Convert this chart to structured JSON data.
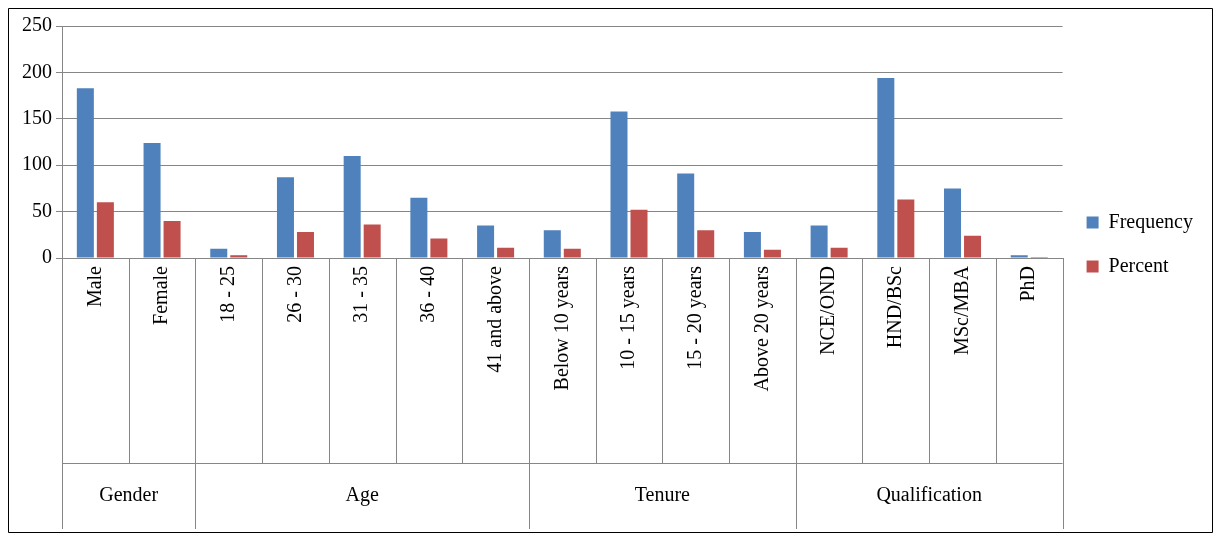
{
  "chart_data": {
    "type": "bar",
    "categories": [
      "Male",
      "Female",
      "18 - 25",
      "26 - 30",
      "31 - 35",
      "36 - 40",
      "41 and above",
      "Below 10 years",
      "10 - 15 years",
      "15 - 20 years",
      "Above 20 years",
      "NCE/OND",
      "HND/BSc",
      "MSc/MBA",
      "PhD"
    ],
    "series": [
      {
        "name": "Frequency",
        "color": "#4f81bd",
        "values": [
          183,
          124,
          10,
          87,
          110,
          65,
          35,
          30,
          158,
          91,
          28,
          35,
          194,
          75,
          3
        ]
      },
      {
        "name": "Percent",
        "color": "#c0504d",
        "values": [
          60,
          40,
          3,
          28,
          36,
          21,
          11,
          10,
          52,
          30,
          9,
          11,
          63,
          24,
          1
        ]
      }
    ],
    "ylim": [
      0,
      250
    ],
    "yticks": [
      0,
      50,
      100,
      150,
      200,
      250
    ],
    "grid": "y",
    "legend": "right",
    "annotations": [
      "Gender",
      "Age",
      "Tenure",
      "Qualification"
    ]
  }
}
